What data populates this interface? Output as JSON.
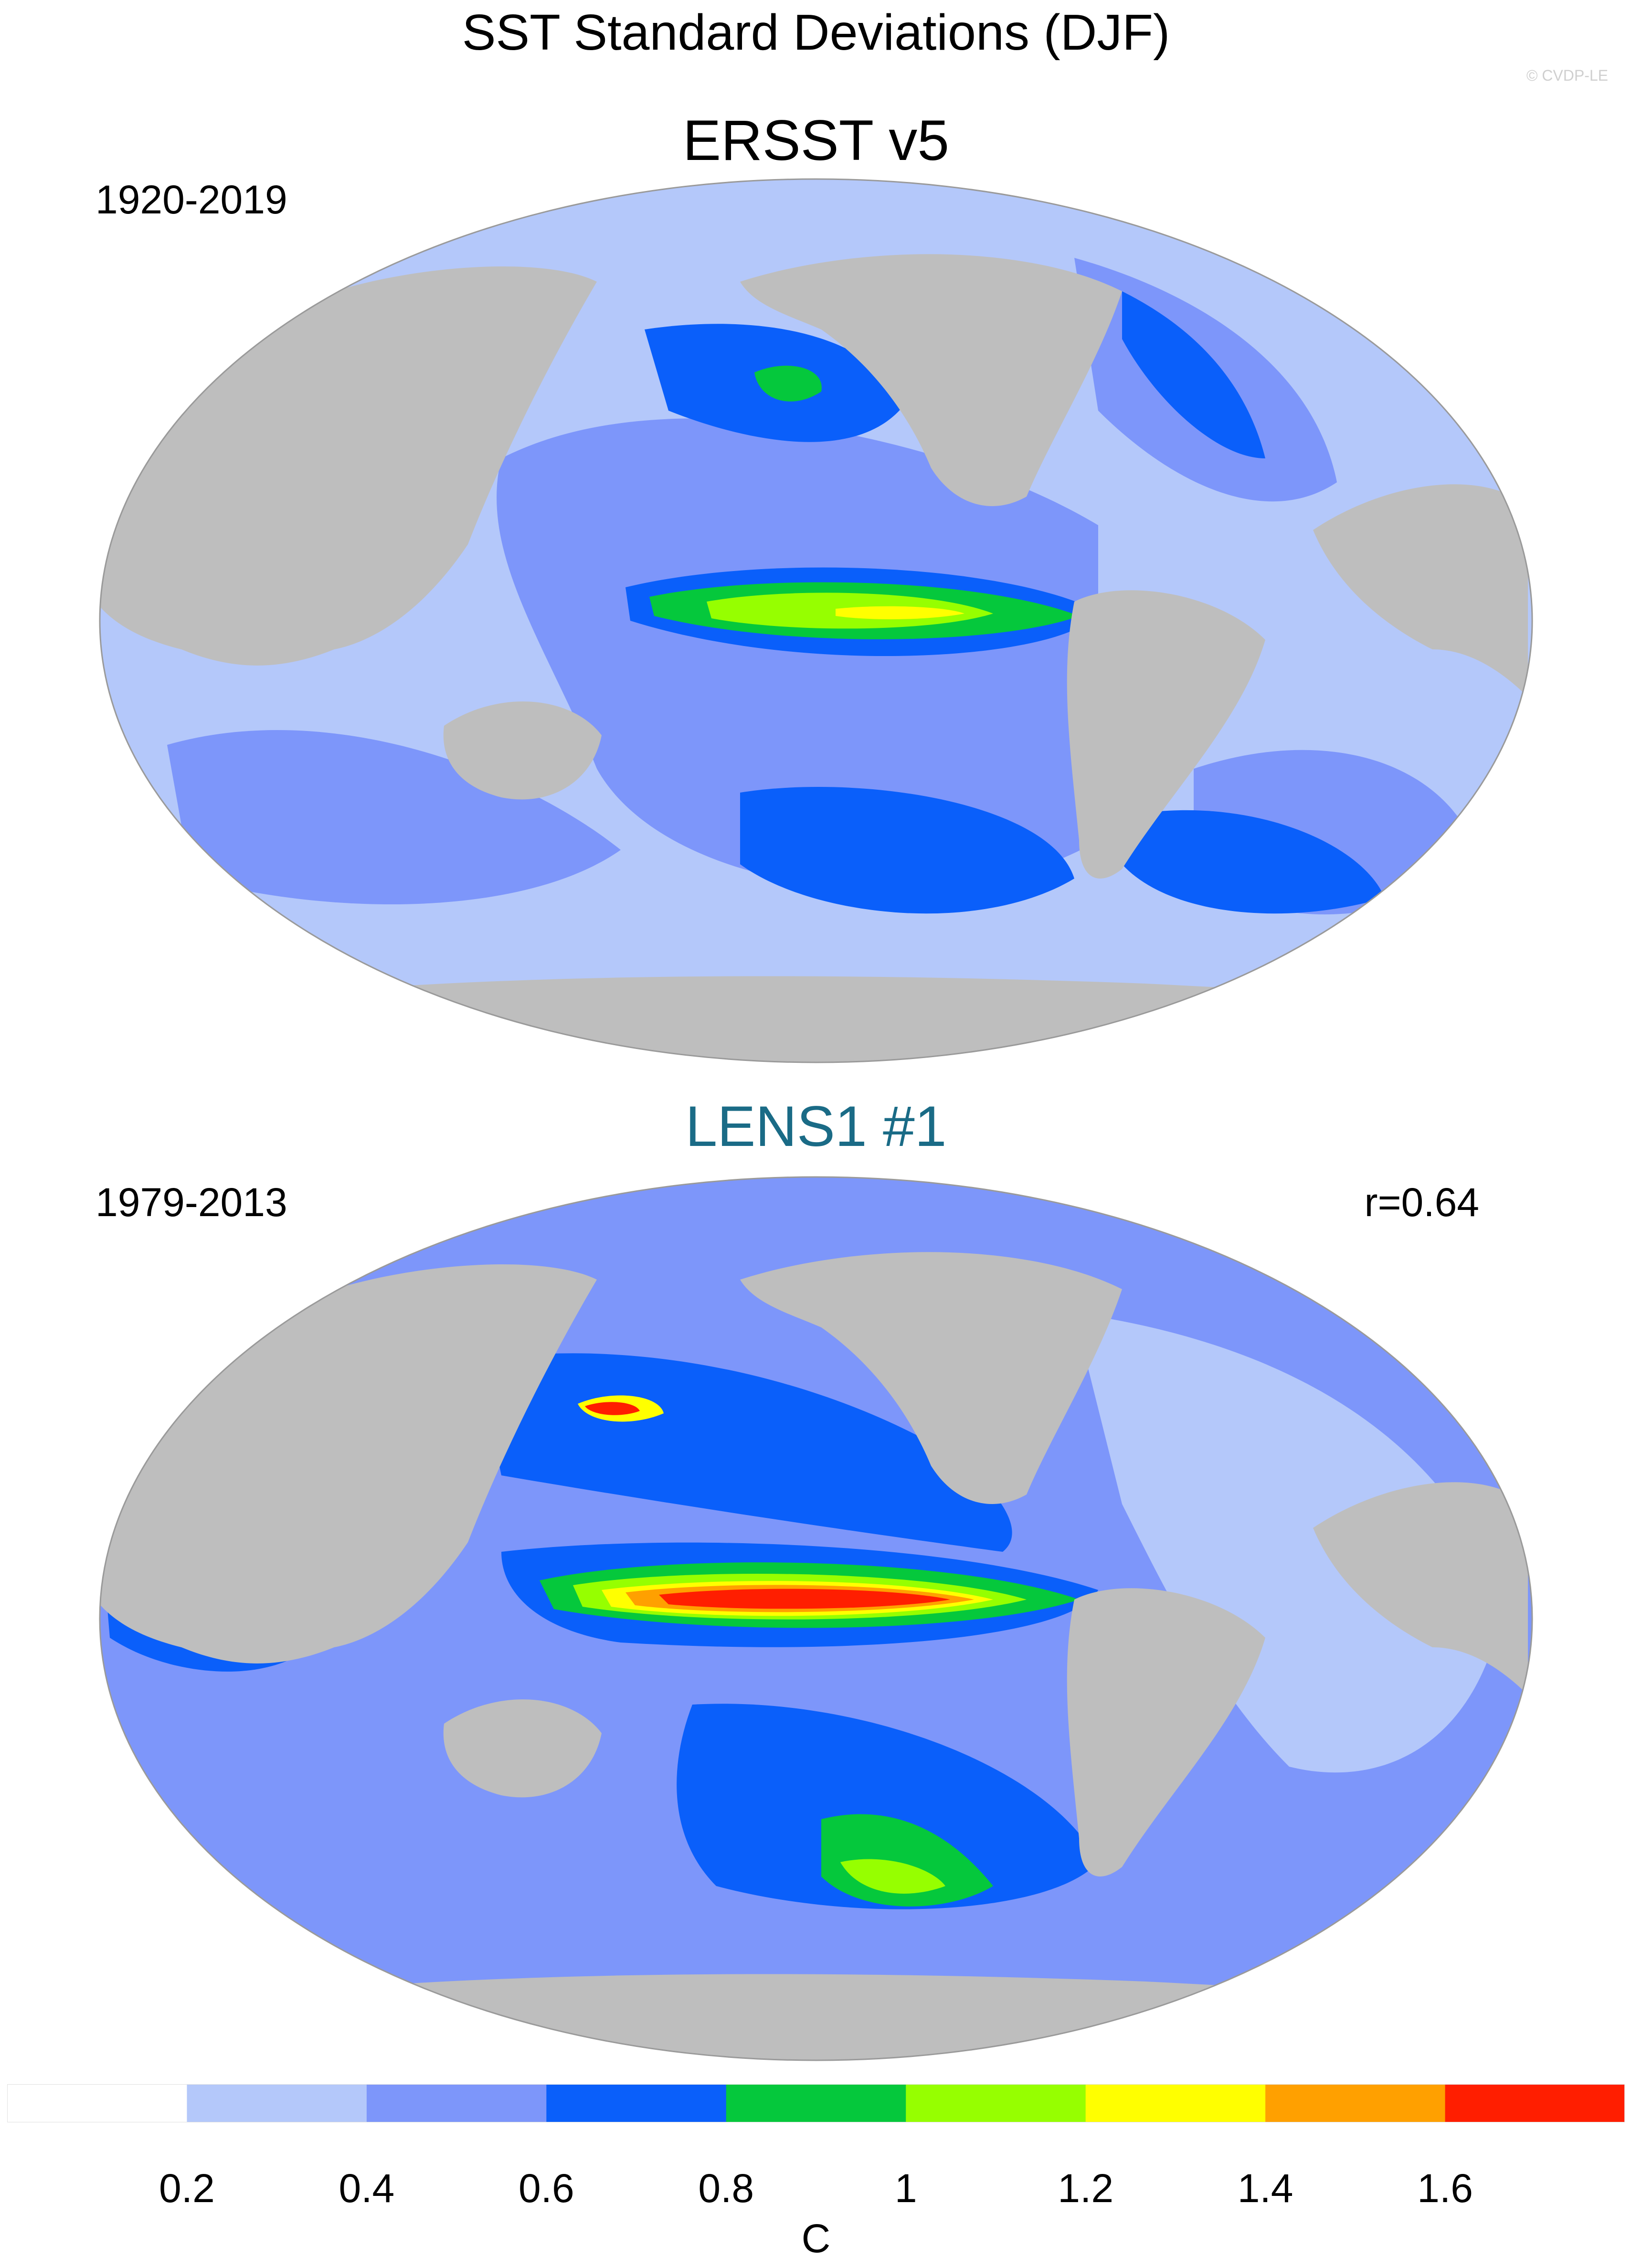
{
  "title": "SST Standard Deviations (DJF)",
  "copyright": "© CVDP-LE",
  "colors": {
    "land": "#bebebe",
    "bins": [
      "#ffffff",
      "#b4c8fa",
      "#7d96fa",
      "#0a5ffa",
      "#05c83c",
      "#96ff00",
      "#ffff00",
      "#ffa000",
      "#ff1e00"
    ]
  },
  "panels": [
    {
      "title": "ERSST v5",
      "period": "1920-2019",
      "correlation": ""
    },
    {
      "title": "LENS1 #1",
      "period": "1979-2013",
      "correlation": "r=0.64"
    }
  ],
  "colorbar": {
    "ticks": [
      "0.2",
      "0.4",
      "0.6",
      "0.8",
      "1",
      "1.2",
      "1.4",
      "1.6"
    ],
    "unit": "C"
  }
}
